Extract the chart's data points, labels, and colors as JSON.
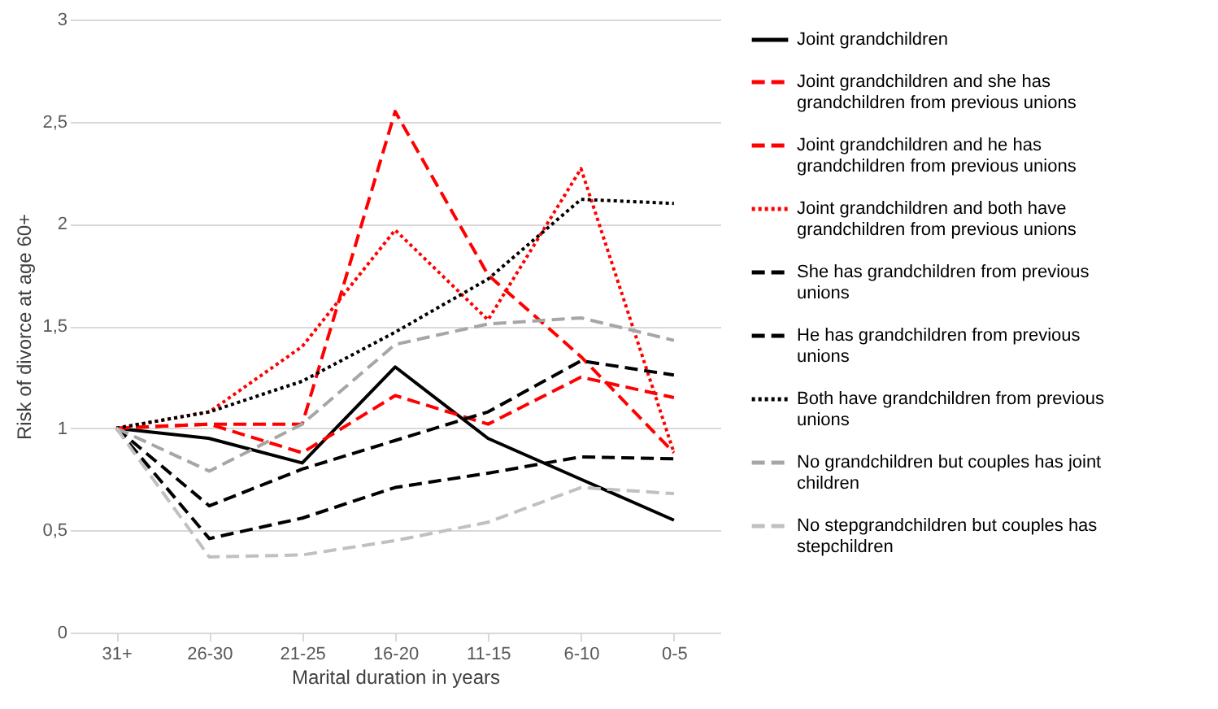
{
  "chart_data": {
    "type": "line",
    "xlabel": "Marital duration in years",
    "ylabel": "Risk of divorce at age 60+",
    "categories": [
      "31+",
      "26-30",
      "21-25",
      "16-20",
      "11-15",
      "6-10",
      "0-5"
    ],
    "ylim": [
      0,
      3
    ],
    "yticks": [
      0,
      {
        "value": 0.5,
        "label": "0,5"
      },
      1,
      {
        "value": 1.5,
        "label": "1,5"
      },
      2,
      {
        "value": 2.5,
        "label": "2,5"
      },
      3
    ],
    "grid": "y",
    "legend": "right",
    "marker": "none",
    "series": [
      {
        "name": "Joint grandchildren",
        "color": "#000000",
        "line_style": "solid",
        "values": [
          1,
          0.95,
          0.83,
          1.3,
          0.95,
          0.75,
          0.55
        ]
      },
      {
        "name": "Joint grandchildren and she has grandchildren from previous unions",
        "color": "#ff0000",
        "line_style": "dashed",
        "values": [
          1,
          1.02,
          1.02,
          2.55,
          1.75,
          1.35,
          0.88
        ]
      },
      {
        "name": "Joint grandchildren and he has grandchildren from previous unions",
        "color": "#ff0000",
        "line_style": "dashed",
        "values": [
          1,
          1.02,
          0.88,
          1.16,
          1.02,
          1.25,
          1.15
        ]
      },
      {
        "name": "Joint grandchildren and both have grandchildren from previous unions",
        "color": "#ff0000",
        "line_style": "dotted",
        "values": [
          1,
          1.08,
          1.4,
          1.97,
          1.53,
          2.27,
          0.88
        ]
      },
      {
        "name": "She has grandchildren from previous unions",
        "color": "#000000",
        "line_style": "dashed",
        "values": [
          1,
          0.62,
          0.8,
          0.94,
          1.08,
          1.33,
          1.26
        ]
      },
      {
        "name": "He has grandchildren from previous unions",
        "color": "#000000",
        "line_style": "dashed",
        "values": [
          1,
          0.46,
          0.56,
          0.71,
          0.78,
          0.86,
          0.85
        ]
      },
      {
        "name": "Both have grandchildren from previous unions",
        "color": "#000000",
        "line_style": "dotted",
        "values": [
          1,
          1.08,
          1.23,
          1.47,
          1.73,
          2.12,
          2.1
        ]
      },
      {
        "name": "No grandchildren but couples has joint children",
        "color": "#a6a6a6",
        "line_style": "dashed",
        "values": [
          1,
          0.79,
          1.02,
          1.41,
          1.51,
          1.54,
          1.43
        ]
      },
      {
        "name": "No stepgrandchildren but couples has stepchildren",
        "color": "#c0c0c0",
        "line_style": "dashed",
        "values": [
          1,
          0.37,
          0.38,
          0.45,
          0.54,
          0.71,
          0.68
        ]
      }
    ]
  }
}
